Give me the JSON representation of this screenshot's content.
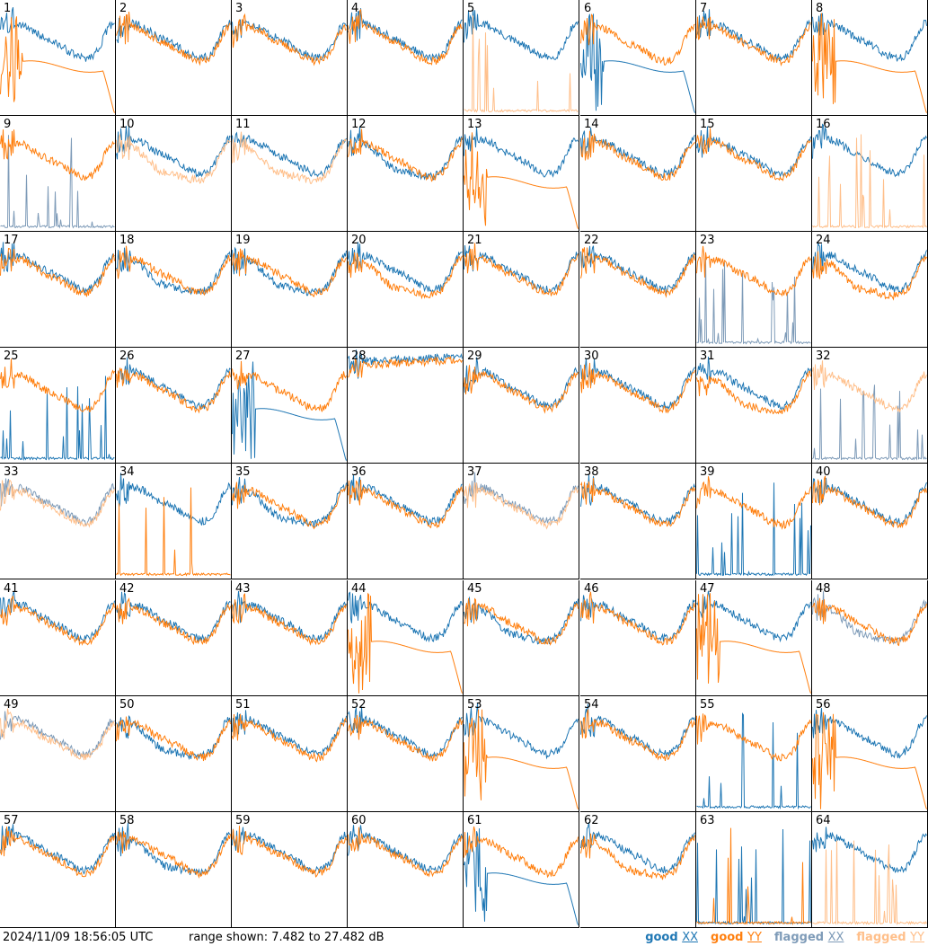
{
  "chart_data": {
    "type": "line",
    "layout": "small multiples, 8 x 8 grid",
    "y_units": "dB",
    "ylim": [
      7.482,
      27.482
    ],
    "colors": {
      "good_xx": "#1f77b4",
      "good_yy": "#ff7f0e",
      "flagged_xx": "#7e9bb8",
      "flagged_yy": "#ffbf8a"
    },
    "panels": [
      {
        "id": "1",
        "xx": "good",
        "yy": "good",
        "xx_shape": "normal",
        "yy_shape": "rolloff"
      },
      {
        "id": "2",
        "xx": "good",
        "yy": "good",
        "xx_shape": "normal",
        "yy_shape": "normal"
      },
      {
        "id": "3",
        "xx": "good",
        "yy": "good",
        "xx_shape": "normal",
        "yy_shape": "normal"
      },
      {
        "id": "4",
        "xx": "good",
        "yy": "good",
        "xx_shape": "normal",
        "yy_shape": "normal"
      },
      {
        "id": "5",
        "xx": "good",
        "yy": "flagged",
        "xx_shape": "normal",
        "yy_shape": "dead"
      },
      {
        "id": "6",
        "xx": "good",
        "yy": "good",
        "xx_shape": "rolloff",
        "yy_shape": "normal"
      },
      {
        "id": "7",
        "xx": "good",
        "yy": "good",
        "xx_shape": "normal",
        "yy_shape": "normal"
      },
      {
        "id": "8",
        "xx": "good",
        "yy": "good",
        "xx_shape": "normal",
        "yy_shape": "rolloff"
      },
      {
        "id": "9",
        "xx": "flagged",
        "yy": "good",
        "xx_shape": "dead",
        "yy_shape": "normal"
      },
      {
        "id": "10",
        "xx": "good",
        "yy": "flagged",
        "xx_shape": "normal",
        "yy_shape": "low"
      },
      {
        "id": "11",
        "xx": "good",
        "yy": "flagged",
        "xx_shape": "normal",
        "yy_shape": "low"
      },
      {
        "id": "12",
        "xx": "good",
        "yy": "good",
        "xx_shape": "low",
        "yy_shape": "normal"
      },
      {
        "id": "13",
        "xx": "good",
        "yy": "good",
        "xx_shape": "normal",
        "yy_shape": "rolloff"
      },
      {
        "id": "14",
        "xx": "good",
        "yy": "good",
        "xx_shape": "normal",
        "yy_shape": "normal"
      },
      {
        "id": "15",
        "xx": "good",
        "yy": "good",
        "xx_shape": "normal",
        "yy_shape": "normal"
      },
      {
        "id": "16",
        "xx": "good",
        "yy": "flagged",
        "xx_shape": "normal",
        "yy_shape": "dead"
      },
      {
        "id": "17",
        "xx": "good",
        "yy": "good",
        "xx_shape": "normal",
        "yy_shape": "normal"
      },
      {
        "id": "18",
        "xx": "good",
        "yy": "good",
        "xx_shape": "low",
        "yy_shape": "normal"
      },
      {
        "id": "19",
        "xx": "good",
        "yy": "good",
        "xx_shape": "low",
        "yy_shape": "normal"
      },
      {
        "id": "20",
        "xx": "good",
        "yy": "good",
        "xx_shape": "normal",
        "yy_shape": "low"
      },
      {
        "id": "21",
        "xx": "good",
        "yy": "good",
        "xx_shape": "normal",
        "yy_shape": "normal"
      },
      {
        "id": "22",
        "xx": "good",
        "yy": "good",
        "xx_shape": "normal",
        "yy_shape": "normal"
      },
      {
        "id": "23",
        "xx": "flagged",
        "yy": "good",
        "xx_shape": "dead",
        "yy_shape": "normal"
      },
      {
        "id": "24",
        "xx": "good",
        "yy": "good",
        "xx_shape": "normal",
        "yy_shape": "low"
      },
      {
        "id": "25",
        "xx": "good",
        "yy": "good",
        "xx_shape": "dead",
        "yy_shape": "normal"
      },
      {
        "id": "26",
        "xx": "good",
        "yy": "good",
        "xx_shape": "normal",
        "yy_shape": "normal"
      },
      {
        "id": "27",
        "xx": "good",
        "yy": "good",
        "xx_shape": "rolloff",
        "yy_shape": "normal"
      },
      {
        "id": "28",
        "xx": "good",
        "yy": "good",
        "xx_shape": "high",
        "yy_shape": "high"
      },
      {
        "id": "29",
        "xx": "good",
        "yy": "good",
        "xx_shape": "normal",
        "yy_shape": "normal"
      },
      {
        "id": "30",
        "xx": "good",
        "yy": "good",
        "xx_shape": "normal",
        "yy_shape": "normal"
      },
      {
        "id": "31",
        "xx": "good",
        "yy": "good",
        "xx_shape": "normal",
        "yy_shape": "low"
      },
      {
        "id": "32",
        "xx": "flagged",
        "yy": "flagged",
        "xx_shape": "dead",
        "yy_shape": "normal"
      },
      {
        "id": "33",
        "xx": "flagged",
        "yy": "flagged",
        "xx_shape": "normal",
        "yy_shape": "normal"
      },
      {
        "id": "34",
        "xx": "good",
        "yy": "good",
        "xx_shape": "normal",
        "yy_shape": "dead"
      },
      {
        "id": "35",
        "xx": "good",
        "yy": "good",
        "xx_shape": "low",
        "yy_shape": "normal"
      },
      {
        "id": "36",
        "xx": "good",
        "yy": "good",
        "xx_shape": "normal",
        "yy_shape": "normal"
      },
      {
        "id": "37",
        "xx": "flagged",
        "yy": "flagged",
        "xx_shape": "normal",
        "yy_shape": "normal"
      },
      {
        "id": "38",
        "xx": "good",
        "yy": "good",
        "xx_shape": "normal",
        "yy_shape": "normal"
      },
      {
        "id": "39",
        "xx": "good",
        "yy": "good",
        "xx_shape": "dead",
        "yy_shape": "normal"
      },
      {
        "id": "40",
        "xx": "good",
        "yy": "good",
        "xx_shape": "normal",
        "yy_shape": "normal"
      },
      {
        "id": "41",
        "xx": "good",
        "yy": "good",
        "xx_shape": "normal",
        "yy_shape": "normal"
      },
      {
        "id": "42",
        "xx": "good",
        "yy": "good",
        "xx_shape": "normal",
        "yy_shape": "normal"
      },
      {
        "id": "43",
        "xx": "good",
        "yy": "good",
        "xx_shape": "normal",
        "yy_shape": "normal"
      },
      {
        "id": "44",
        "xx": "good",
        "yy": "good",
        "xx_shape": "normal",
        "yy_shape": "rolloff"
      },
      {
        "id": "45",
        "xx": "good",
        "yy": "good",
        "xx_shape": "low",
        "yy_shape": "normal"
      },
      {
        "id": "46",
        "xx": "good",
        "yy": "good",
        "xx_shape": "normal",
        "yy_shape": "normal"
      },
      {
        "id": "47",
        "xx": "good",
        "yy": "good",
        "xx_shape": "normal",
        "yy_shape": "rolloff"
      },
      {
        "id": "48",
        "xx": "flagged",
        "yy": "good",
        "xx_shape": "low",
        "yy_shape": "normal"
      },
      {
        "id": "49",
        "xx": "flagged",
        "yy": "flagged",
        "xx_shape": "normal",
        "yy_shape": "normal"
      },
      {
        "id": "50",
        "xx": "good",
        "yy": "good",
        "xx_shape": "low",
        "yy_shape": "normal"
      },
      {
        "id": "51",
        "xx": "good",
        "yy": "good",
        "xx_shape": "normal",
        "yy_shape": "normal"
      },
      {
        "id": "52",
        "xx": "good",
        "yy": "good",
        "xx_shape": "normal",
        "yy_shape": "normal"
      },
      {
        "id": "53",
        "xx": "good",
        "yy": "good",
        "xx_shape": "normal",
        "yy_shape": "rolloff"
      },
      {
        "id": "54",
        "xx": "good",
        "yy": "good",
        "xx_shape": "normal",
        "yy_shape": "normal"
      },
      {
        "id": "55",
        "xx": "good",
        "yy": "good",
        "xx_shape": "dead",
        "yy_shape": "normal"
      },
      {
        "id": "56",
        "xx": "good",
        "yy": "good",
        "xx_shape": "normal",
        "yy_shape": "rolloff"
      },
      {
        "id": "57",
        "xx": "good",
        "yy": "good",
        "xx_shape": "normal",
        "yy_shape": "normal"
      },
      {
        "id": "58",
        "xx": "good",
        "yy": "good",
        "xx_shape": "low",
        "yy_shape": "normal"
      },
      {
        "id": "59",
        "xx": "good",
        "yy": "good",
        "xx_shape": "normal",
        "yy_shape": "normal"
      },
      {
        "id": "60",
        "xx": "good",
        "yy": "good",
        "xx_shape": "normal",
        "yy_shape": "normal"
      },
      {
        "id": "61",
        "xx": "good",
        "yy": "good",
        "xx_shape": "rolloff",
        "yy_shape": "normal"
      },
      {
        "id": "62",
        "xx": "good",
        "yy": "good",
        "xx_shape": "normal",
        "yy_shape": "low"
      },
      {
        "id": "63",
        "xx": "good",
        "yy": "good",
        "xx_shape": "dead",
        "yy_shape": "dead"
      },
      {
        "id": "64",
        "xx": "good",
        "yy": "flagged",
        "xx_shape": "normal",
        "yy_shape": "dead"
      }
    ]
  },
  "footer": {
    "timestamp": "2024/11/09 18:56:05 UTC",
    "range_text": "range shown: 7.482 to 27.482 dB",
    "legend": [
      {
        "word": "good",
        "key": "XX",
        "color": "#1f77b4"
      },
      {
        "word": "good",
        "key": "YY",
        "color": "#ff7f0e"
      },
      {
        "word": "flagged",
        "key": "XX",
        "color": "#7e9bb8"
      },
      {
        "word": "flagged",
        "key": "YY",
        "color": "#ffbf8a"
      }
    ]
  }
}
